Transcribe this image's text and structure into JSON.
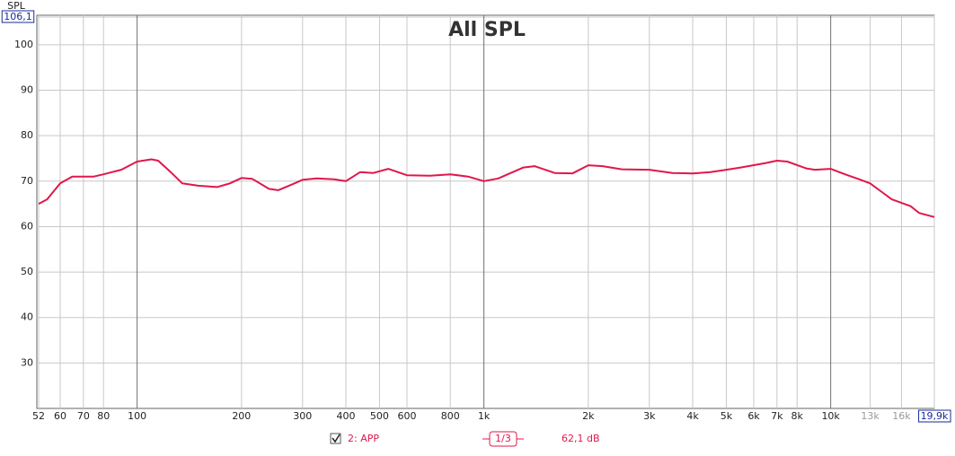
{
  "chart_data": {
    "type": "line",
    "title": "All SPL",
    "y_label": "SPL",
    "xscale": "log",
    "grid": true,
    "x": [
      52,
      55,
      60,
      65,
      70,
      75,
      80,
      90,
      100,
      110,
      115,
      125,
      135,
      150,
      170,
      185,
      200,
      215,
      240,
      255,
      280,
      300,
      330,
      370,
      400,
      440,
      480,
      530,
      600,
      700,
      800,
      900,
      1000,
      1100,
      1300,
      1400,
      1600,
      1800,
      2000,
      2200,
      2500,
      3000,
      3500,
      4000,
      4500,
      5000,
      5500,
      6500,
      7000,
      7500,
      8500,
      9000,
      10000,
      11000,
      12000,
      13000,
      14000,
      15000,
      17000,
      18000,
      19900
    ],
    "series": [
      {
        "name": "2: APP",
        "color": "#e0174a",
        "values": [
          65,
          66,
          69.5,
          71,
          71,
          71,
          71.5,
          72.5,
          74.3,
          74.8,
          74.5,
          72,
          69.5,
          69,
          68.7,
          69.5,
          70.7,
          70.5,
          68.3,
          68,
          69.3,
          70.3,
          70.6,
          70.4,
          70,
          72,
          71.8,
          72.7,
          71.3,
          71.2,
          71.5,
          71,
          70,
          70.6,
          73,
          73.3,
          71.8,
          71.7,
          73.5,
          73.3,
          72.6,
          72.5,
          71.8,
          71.7,
          72,
          72.5,
          73,
          74,
          74.5,
          74.3,
          72.8,
          72.5,
          72.7,
          71.5,
          70.5,
          69.5,
          67.7,
          66,
          64.5,
          63,
          62.1
        ]
      }
    ],
    "xlim": [
      52,
      19900
    ],
    "ylim": [
      20,
      106.1
    ],
    "xticks": [
      52,
      60,
      70,
      80,
      100,
      200,
      300,
      400,
      500,
      600,
      800,
      {
        "value": 1000,
        "label": "1k"
      },
      {
        "value": 2000,
        "label": "2k"
      },
      {
        "value": 3000,
        "label": "3k"
      },
      {
        "value": 4000,
        "label": "4k"
      },
      {
        "value": 5000,
        "label": "5k"
      },
      {
        "value": 6000,
        "label": "6k"
      },
      {
        "value": 7000,
        "label": "7k"
      },
      {
        "value": 8000,
        "label": "8k"
      },
      {
        "value": 10000,
        "label": "10k"
      },
      {
        "value": 13000,
        "label": "13k",
        "color": "#9a9a9a"
      },
      {
        "value": 16000,
        "label": "16k",
        "color": "#9a9a9a"
      },
      {
        "value": 19900,
        "label": "19,9k",
        "boxed": true
      }
    ],
    "yticks": [
      30,
      40,
      50,
      60,
      70,
      80,
      90,
      100,
      {
        "value": 106.1,
        "label": "106,1",
        "boxed": true
      }
    ],
    "smoothing": "1/3",
    "cursor_value": "62,1 dB"
  }
}
